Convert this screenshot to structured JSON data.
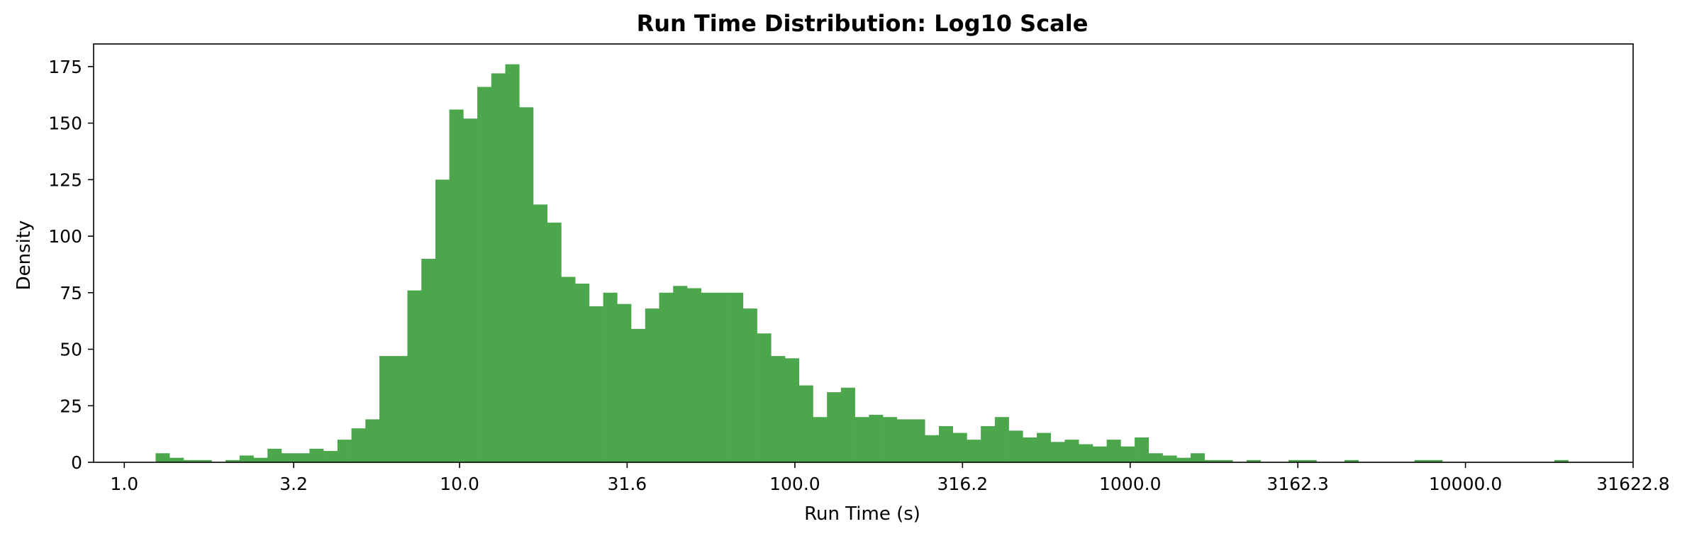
{
  "chart_data": {
    "type": "bar",
    "title": "Run Time Distribution: Log10 Scale",
    "xlabel": "Run Time (s)",
    "ylabel": "Density",
    "x_scale": "log10",
    "bar_color": "#4ca64c",
    "grid": false,
    "legend": "none",
    "xlim": [
      0.81,
      31622.8
    ],
    "ylim": [
      0,
      185
    ],
    "x_ticks": [
      {
        "value": 1.0,
        "label": "1.0"
      },
      {
        "value": 3.2,
        "label": "3.2"
      },
      {
        "value": 10.0,
        "label": "10.0"
      },
      {
        "value": 31.6,
        "label": "31.6"
      },
      {
        "value": 100.0,
        "label": "100.0"
      },
      {
        "value": 316.2,
        "label": "316.2"
      },
      {
        "value": 1000.0,
        "label": "1000.0"
      },
      {
        "value": 3162.3,
        "label": "3162.3"
      },
      {
        "value": 10000.0,
        "label": "10000.0"
      },
      {
        "value": 31622.8,
        "label": "31622.8"
      }
    ],
    "y_ticks": [
      {
        "value": 0,
        "label": "0"
      },
      {
        "value": 25,
        "label": "25"
      },
      {
        "value": 50,
        "label": "50"
      },
      {
        "value": 75,
        "label": "75"
      },
      {
        "value": 100,
        "label": "100"
      },
      {
        "value": 125,
        "label": "125"
      },
      {
        "value": 150,
        "label": "150"
      },
      {
        "value": 175,
        "label": "175"
      }
    ],
    "bin_start": 1.24,
    "bin_end": 22300,
    "values": [
      4,
      2,
      1,
      1,
      0,
      1,
      3,
      2,
      6,
      4,
      4,
      6,
      5,
      10,
      15,
      19,
      47,
      47,
      76,
      90,
      125,
      156,
      152,
      166,
      172,
      176,
      157,
      114,
      106,
      82,
      79,
      69,
      75,
      70,
      59,
      68,
      75,
      78,
      77,
      75,
      75,
      75,
      68,
      57,
      47,
      46,
      34,
      20,
      31,
      33,
      20,
      21,
      20,
      19,
      19,
      12,
      16,
      13,
      10,
      16,
      20,
      14,
      11,
      13,
      9,
      10,
      8,
      7,
      10,
      7,
      11,
      4,
      3,
      2,
      4,
      1,
      1,
      0,
      1,
      0,
      0,
      1,
      1,
      0,
      0,
      1,
      0,
      0,
      0,
      0,
      1,
      1,
      0,
      0,
      0,
      0,
      0,
      0,
      0,
      0,
      1,
      0
    ]
  }
}
